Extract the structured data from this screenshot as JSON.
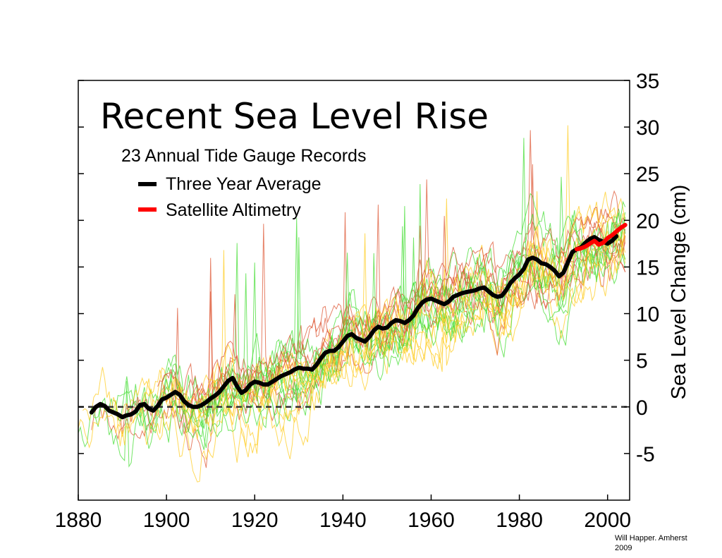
{
  "chart_data": {
    "type": "line",
    "title": "Recent Sea Level Rise",
    "subtitle": "23 Annual Tide Gauge Records",
    "ylabel": "Sea Level Change (cm)",
    "xlabel": "",
    "xlim": [
      1880,
      2005
    ],
    "ylim": [
      -10,
      35
    ],
    "x_ticks": [
      "1880",
      "1900",
      "1920",
      "1940",
      "1960",
      "1980",
      "2000"
    ],
    "y_ticks": [
      "35",
      "30",
      "25",
      "20",
      "15",
      "10",
      "5",
      "0",
      "-5"
    ],
    "y_axis_position": "right",
    "zero_reference_line": true,
    "legend": [
      "Three Year Average",
      "Satellite Altimetry"
    ],
    "series": [
      {
        "name": "Three Year Average",
        "color": "#000000",
        "x": [
          1883,
          1884,
          1885,
          1886,
          1887,
          1888,
          1889,
          1890,
          1891,
          1892,
          1893,
          1894,
          1895,
          1896,
          1897,
          1898,
          1899,
          1900,
          1901,
          1902,
          1903,
          1904,
          1905,
          1906,
          1907,
          1908,
          1909,
          1910,
          1911,
          1912,
          1913,
          1914,
          1915,
          1916,
          1917,
          1918,
          1919,
          1920,
          1921,
          1922,
          1923,
          1924,
          1925,
          1926,
          1927,
          1928,
          1929,
          1930,
          1931,
          1932,
          1933,
          1934,
          1935,
          1936,
          1937,
          1938,
          1939,
          1940,
          1941,
          1942,
          1943,
          1944,
          1945,
          1946,
          1947,
          1948,
          1949,
          1950,
          1951,
          1952,
          1953,
          1954,
          1955,
          1956,
          1957,
          1958,
          1959,
          1960,
          1961,
          1962,
          1963,
          1964,
          1965,
          1966,
          1967,
          1968,
          1969,
          1970,
          1971,
          1972,
          1973,
          1974,
          1975,
          1976,
          1977,
          1978,
          1979,
          1980,
          1981,
          1982,
          1983,
          1984,
          1985,
          1986,
          1987,
          1988,
          1989,
          1990,
          1991,
          1992,
          1993,
          1994,
          1995,
          1996,
          1997,
          1998,
          1999,
          2000,
          2001,
          2002
        ],
        "values": [
          -0.6,
          0.0,
          0.3,
          0.1,
          -0.4,
          -0.6,
          -0.8,
          -1.1,
          -0.9,
          -0.8,
          -0.5,
          0.2,
          0.3,
          -0.2,
          -0.4,
          0.1,
          0.8,
          1.0,
          1.3,
          1.6,
          1.3,
          0.6,
          0.2,
          0.0,
          0.0,
          0.2,
          0.5,
          0.9,
          1.2,
          1.6,
          2.2,
          2.8,
          3.1,
          2.2,
          1.5,
          1.8,
          2.4,
          2.7,
          2.6,
          2.4,
          2.4,
          2.7,
          3.0,
          3.3,
          3.5,
          3.7,
          4.0,
          4.2,
          4.1,
          4.1,
          4.0,
          4.5,
          5.2,
          5.8,
          6.0,
          6.0,
          6.4,
          7.0,
          7.6,
          7.8,
          7.4,
          7.2,
          7.0,
          7.5,
          8.2,
          8.6,
          8.4,
          8.5,
          9.0,
          9.3,
          9.2,
          9.0,
          9.3,
          9.8,
          10.6,
          11.2,
          11.5,
          11.6,
          11.4,
          11.2,
          11.0,
          11.3,
          11.8,
          12.0,
          12.2,
          12.3,
          12.4,
          12.5,
          12.7,
          12.8,
          12.4,
          12.0,
          11.8,
          11.9,
          12.5,
          13.3,
          13.8,
          14.2,
          14.8,
          15.8,
          16.0,
          15.8,
          15.4,
          15.3,
          15.0,
          14.6,
          14.0,
          14.4,
          15.5,
          16.6,
          16.9,
          17.1,
          17.6,
          18.0,
          18.2,
          17.9,
          17.7,
          17.5,
          17.8,
          18.3
        ]
      },
      {
        "name": "Satellite Altimetry",
        "color": "#ff0000",
        "x": [
          1993,
          1994,
          1995,
          1996,
          1997,
          1998,
          1999,
          2000,
          2001,
          2002,
          2003,
          2004
        ],
        "values": [
          16.9,
          17.0,
          17.2,
          17.5,
          17.8,
          17.4,
          17.6,
          18.1,
          18.4,
          18.8,
          19.2,
          19.5
        ]
      }
    ],
    "gauge_record_count": 23,
    "gauge_colors": [
      "#44dd33",
      "#ffcc22",
      "#dd5533"
    ]
  },
  "credit": {
    "line1": "Will Happer. Amherst",
    "line2": "2009"
  }
}
